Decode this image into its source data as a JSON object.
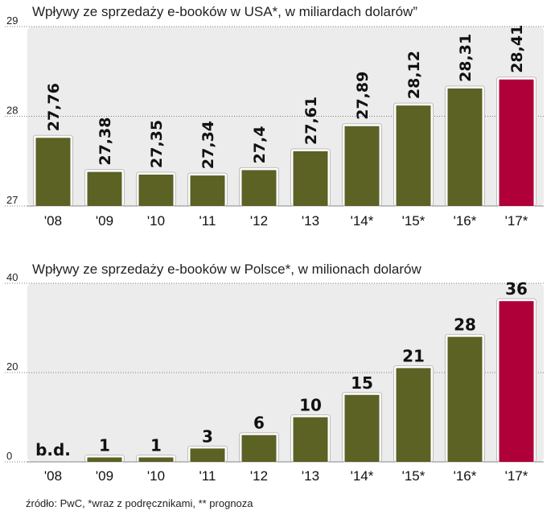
{
  "chart_data": [
    {
      "type": "bar",
      "title": "Wpływy ze sprzedaży e-booków w USA*, w miliardach dolarów”",
      "categories": [
        "'08",
        "'09",
        "'10",
        "'11",
        "'12",
        "'13",
        "'14*",
        "'15*",
        "'16*",
        "'17*"
      ],
      "values": [
        27.76,
        27.38,
        27.35,
        27.34,
        27.4,
        27.61,
        27.89,
        28.12,
        28.31,
        28.41
      ],
      "value_labels": [
        "27,76",
        "27,38",
        "27,35",
        "27,34",
        "27,4",
        "27,61",
        "27,89",
        "28,12",
        "28,31",
        "28,41"
      ],
      "ylim": [
        27,
        29
      ],
      "yticks": [
        "27",
        "28",
        "29"
      ],
      "grid": true,
      "colors": {
        "bar": "#5c6124",
        "highlight": "#b0003a"
      },
      "highlight_index": 9
    },
    {
      "type": "bar",
      "title": "Wpływy ze sprzedaży e-booków w Polsce*, w milionach dolarów",
      "categories": [
        "'08",
        "'09",
        "'10",
        "'11",
        "'12",
        "'13",
        "'14*",
        "'15*",
        "'16*",
        "'17*"
      ],
      "values": [
        null,
        1,
        1,
        3,
        6,
        10,
        15,
        21,
        28,
        36
      ],
      "value_labels": [
        "b.d.",
        "1",
        "1",
        "3",
        "6",
        "10",
        "15",
        "21",
        "28",
        "36"
      ],
      "ylim": [
        0,
        40
      ],
      "yticks": [
        "0",
        "20",
        "40"
      ],
      "grid": true,
      "colors": {
        "bar": "#5c6124",
        "highlight": "#b0003a"
      },
      "highlight_index": 9
    }
  ],
  "source_note": "źródło: PwC, *wraz z podręcznikami, ** prognoza"
}
